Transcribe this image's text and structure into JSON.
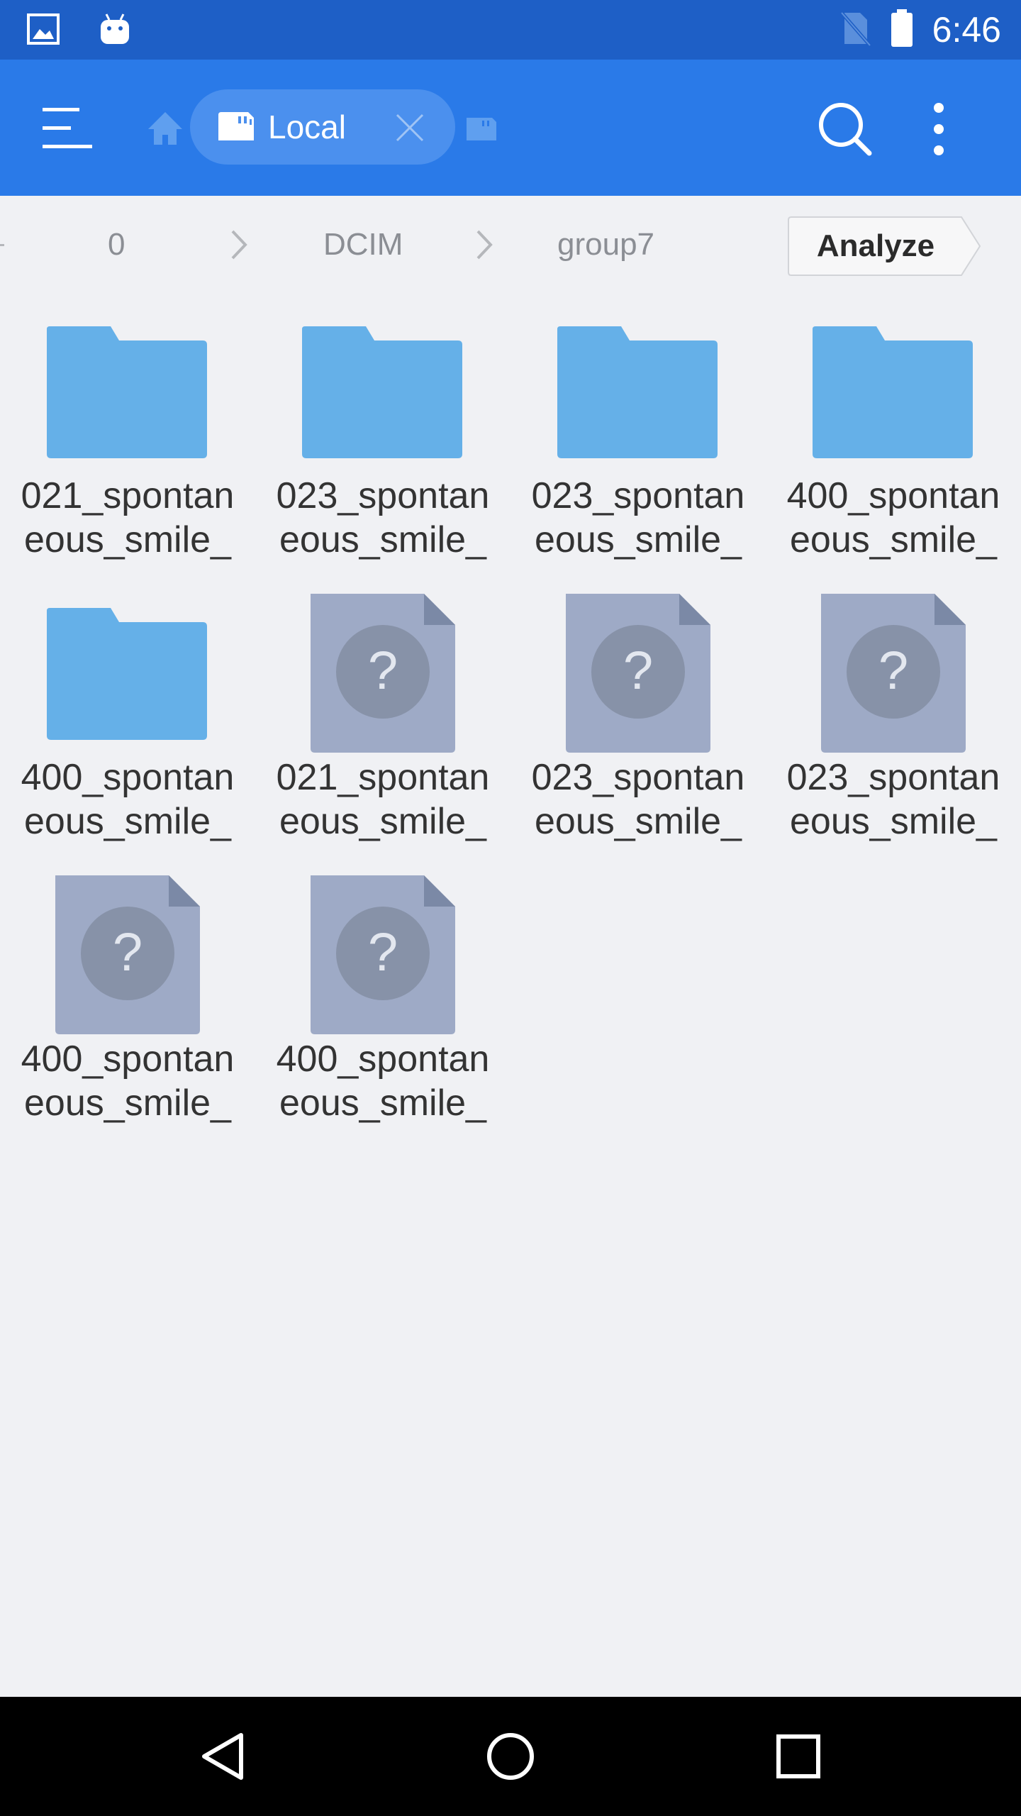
{
  "status_bar": {
    "time": "6:46",
    "icons": [
      "image-notification-icon",
      "android-notification-icon",
      "no-sim-icon",
      "battery-icon"
    ]
  },
  "app_bar": {
    "tab_label": "Local",
    "icons": [
      "menu-icon",
      "home-icon",
      "sd-card-icon",
      "close-icon",
      "storage-icon",
      "search-icon",
      "more-vert-icon"
    ]
  },
  "breadcrumb": {
    "items": [
      "0",
      "DCIM",
      "group7"
    ],
    "analyze_label": "Analyze"
  },
  "files": [
    {
      "line1": "021_spontan",
      "line2": "eous_smile_",
      "type": "folder"
    },
    {
      "line1": "023_spontan",
      "line2": "eous_smile_",
      "type": "folder"
    },
    {
      "line1": "023_spontan",
      "line2": "eous_smile_",
      "type": "folder"
    },
    {
      "line1": "400_spontan",
      "line2": "eous_smile_",
      "type": "folder"
    },
    {
      "line1": "400_spontan",
      "line2": "eous_smile_",
      "type": "folder"
    },
    {
      "line1": "021_spontan",
      "line2": "eous_smile_",
      "type": "unknown-file"
    },
    {
      "line1": "023_spontan",
      "line2": "eous_smile_",
      "type": "unknown-file"
    },
    {
      "line1": "023_spontan",
      "line2": "eous_smile_",
      "type": "unknown-file"
    },
    {
      "line1": "400_spontan",
      "line2": "eous_smile_",
      "type": "unknown-file"
    },
    {
      "line1": "400_spontan",
      "line2": "eous_smile_",
      "type": "unknown-file"
    }
  ],
  "colors": {
    "status_bar": "#1e5fc6",
    "app_bar": "#2a7ae8",
    "folder": "#65b0e8",
    "unknown_file": "#9eaac6",
    "background": "#f0f1f4"
  }
}
